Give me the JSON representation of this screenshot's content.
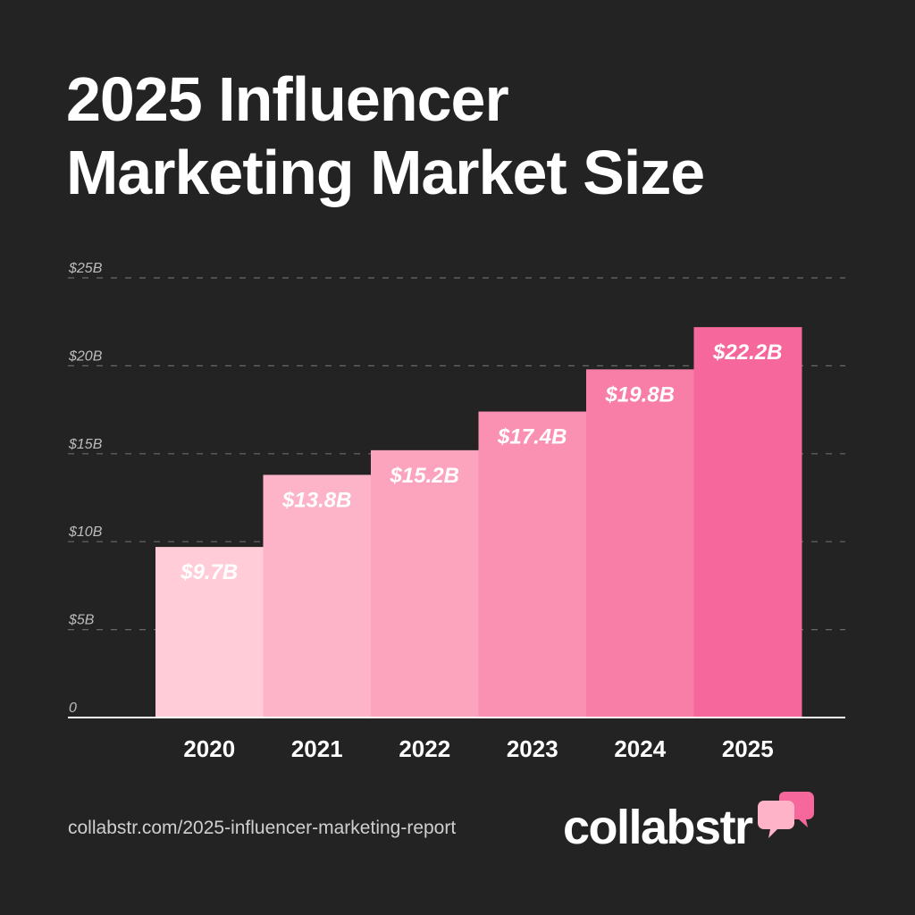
{
  "title": {
    "line1": "2025 Influencer",
    "line2": "Marketing Market Size"
  },
  "chart_data": {
    "type": "bar",
    "categories": [
      "2020",
      "2021",
      "2022",
      "2023",
      "2024",
      "2025"
    ],
    "values": [
      9.7,
      13.8,
      15.2,
      17.4,
      19.8,
      22.2
    ],
    "data_labels": [
      "$9.7B",
      "$13.8B",
      "$15.2B",
      "$17.4B",
      "$19.8B",
      "$22.2B"
    ],
    "y_ticks": [
      0,
      5,
      10,
      15,
      20,
      25
    ],
    "y_tick_labels": [
      "0",
      "$5B",
      "$10B",
      "$15B",
      "$20B",
      "$25B"
    ],
    "ylim": [
      0,
      25
    ],
    "grid": true,
    "bar_colors": [
      "#FFCCD7",
      "#FDB3C8",
      "#FCA3BE",
      "#FA91B3",
      "#F87EA8",
      "#F6689B"
    ]
  },
  "footer": {
    "url": "collabstr.com/2025-influencer-marketing-report",
    "brand": "collabstr",
    "logo_icon": "speech-bubbles-icon",
    "logo_colors": [
      "#F6689B",
      "#FFB3C8"
    ]
  }
}
